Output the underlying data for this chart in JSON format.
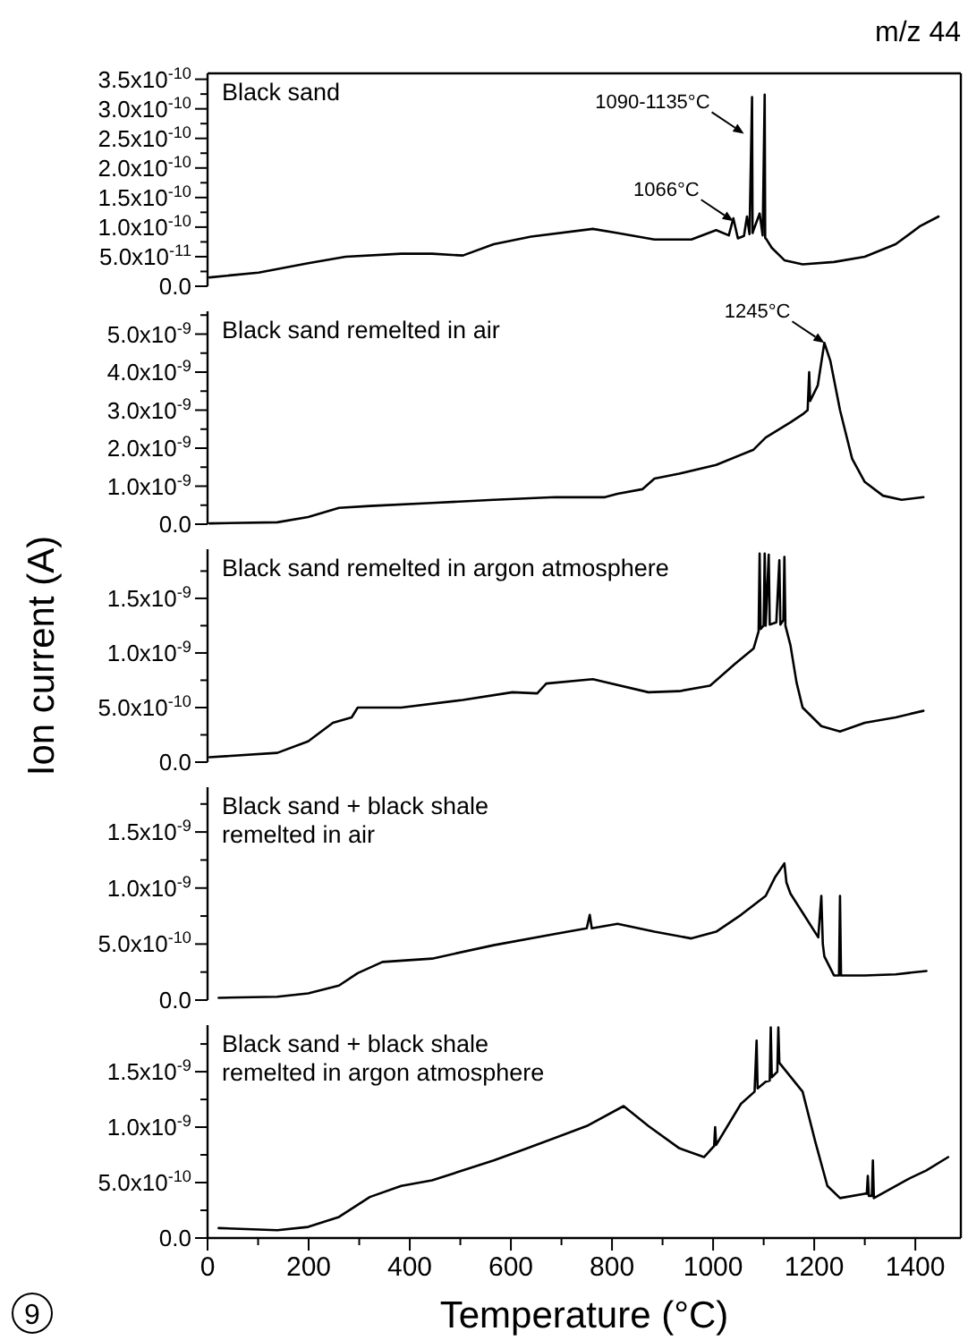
{
  "chart_data": [
    {
      "type": "line",
      "title": "Black sand",
      "color": "#000000",
      "annotations": [
        "m/z 44",
        {
          "text": "1090-1135°C",
          "x": 1061,
          "y": 2.58e-10
        },
        {
          "text": "1066°C",
          "x": 1040,
          "y": 1.1e-10
        }
      ],
      "x": [
        4,
        101,
        199,
        273,
        383,
        444,
        505,
        566,
        640,
        762,
        811,
        884,
        957,
        1006,
        1031,
        1040,
        1049,
        1061,
        1067,
        1072,
        1077,
        1078,
        1080,
        1092,
        1098,
        1102,
        1103,
        1105,
        1116,
        1141,
        1177,
        1239,
        1300,
        1361,
        1410,
        1446
      ],
      "values": [
        1.5e-11,
        2.3e-11,
        3.9e-11,
        5e-11,
        5.5e-11,
        5.5e-11,
        5.2e-11,
        7.1e-11,
        8.4e-11,
        9.7e-11,
        9e-11,
        7.9e-11,
        7.9e-11,
        9.5e-11,
        8.6e-11,
        1.15e-10,
        8.1e-11,
        8.5e-11,
        1.18e-10,
        8.8e-11,
        3.2e-10,
        9e-11,
        9.5e-11,
        1.23e-10,
        8.6e-11,
        3.24e-10,
        8.2e-11,
        8e-11,
        6.5e-11,
        4.4e-11,
        3.7e-11,
        4.1e-11,
        5e-11,
        7.1e-11,
        1.02e-10,
        1.18e-10
      ],
      "xlim": [
        0,
        1490
      ],
      "ylim": [
        0,
        3.6e-10
      ],
      "yticks": [
        {
          "value": 0,
          "label": "0.0"
        },
        {
          "value": 2.5e-11,
          "label": null
        },
        {
          "value": 5e-11,
          "label": "5.0x10$^{-11}$"
        },
        {
          "value": 7.5e-11,
          "label": null
        },
        {
          "value": 1e-10,
          "label": "1.0x10$^{-10}$"
        },
        {
          "value": 1.25e-10,
          "label": null
        },
        {
          "value": 1.5e-10,
          "label": "1.5x10$^{-10}$"
        },
        {
          "value": 1.75e-10,
          "label": null
        },
        {
          "value": 2e-10,
          "label": "2.0x10$^{-10}$"
        },
        {
          "value": 2.25e-10,
          "label": null
        },
        {
          "value": 2.5e-10,
          "label": "2.5x10$^{-10}$"
        },
        {
          "value": 2.75e-10,
          "label": null
        },
        {
          "value": 3e-10,
          "label": "3.0x10$^{-10}$"
        },
        {
          "value": 3.25e-10,
          "label": null
        },
        {
          "value": 3.5e-10,
          "label": "3.5x10$^{-10}$"
        }
      ],
      "tick_labels": "y"
    },
    {
      "type": "line",
      "title": "Black sand remelted in air",
      "color": "#000000",
      "annotations": [
        {
          "text": "1245°C",
          "x": 1220,
          "y": 4.77e-09
        }
      ],
      "x": [
        4,
        138,
        199,
        260,
        321,
        444,
        566,
        688,
        786,
        811,
        860,
        884,
        933,
        1006,
        1080,
        1104,
        1153,
        1177,
        1187,
        1190,
        1192,
        1207,
        1220,
        1232,
        1251,
        1275,
        1300,
        1336,
        1373,
        1416
      ],
      "values": [
        2e-11,
        5e-11,
        1.9e-10,
        4.3e-10,
        4.8e-10,
        5.6e-10,
        6.4e-10,
        7.1e-10,
        7.1e-10,
        8e-10,
        9.2e-10,
        1.2e-09,
        1.33e-09,
        1.56e-09,
        1.96e-09,
        2.28e-09,
        2.68e-09,
        2.89e-09,
        3e-09,
        4e-09,
        3.24e-09,
        3.65e-09,
        4.77e-09,
        4.29e-09,
        3e-09,
        1.72e-09,
        1.11e-09,
        7.5e-10,
        6.4e-10,
        7.1e-10
      ],
      "xlim": [
        0,
        1490
      ],
      "ylim": [
        0,
        5.6e-09
      ],
      "yticks": [
        {
          "value": 0,
          "label": "0.0"
        },
        {
          "value": 5e-10,
          "label": null
        },
        {
          "value": 1e-09,
          "label": "1.0x10$^{-9}$"
        },
        {
          "value": 1.5e-09,
          "label": null
        },
        {
          "value": 2e-09,
          "label": "2.0x10$^{-9}$"
        },
        {
          "value": 2.5e-09,
          "label": null
        },
        {
          "value": 3e-09,
          "label": "3.0x10$^{-9}$"
        },
        {
          "value": 3.5e-09,
          "label": null
        },
        {
          "value": 4e-09,
          "label": "4.0x10$^{-9}$"
        },
        {
          "value": 4.5e-09,
          "label": null
        },
        {
          "value": 5e-09,
          "label": "5.0x10$^{-9}$"
        },
        {
          "value": 5.5e-09,
          "label": null
        }
      ],
      "tick_labels": "y"
    },
    {
      "type": "line",
      "title": "Black sand remelted in argon atmosphere",
      "ylabel": "Ion current (A)",
      "color": "#000000",
      "x": [
        4,
        138,
        199,
        248,
        285,
        297,
        383,
        505,
        603,
        652,
        670,
        762,
        872,
        933,
        994,
        1043,
        1080,
        1090,
        1092,
        1094,
        1100,
        1102,
        1104,
        1110,
        1112,
        1125,
        1131,
        1133,
        1139,
        1141,
        1143,
        1153,
        1165,
        1177,
        1214,
        1251,
        1300,
        1361,
        1416
      ],
      "values": [
        4.5e-11,
        8.5e-11,
        1.9e-10,
        3.6e-10,
        4.1e-10,
        5e-10,
        5e-10,
        5.7e-10,
        6.4e-10,
        6.3e-10,
        7.2e-10,
        7.6e-10,
        6.4e-10,
        6.5e-10,
        7e-10,
        9e-10,
        1.04e-09,
        1.2e-09,
        1.91e-09,
        1.22e-09,
        1.25e-09,
        1.91e-09,
        1.25e-09,
        1.9e-09,
        1.26e-09,
        1.28e-09,
        1.85e-09,
        1.26e-09,
        1.3e-09,
        1.88e-09,
        1.25e-09,
        1.07e-09,
        7.3e-10,
        5e-10,
        3.3e-10,
        2.8e-10,
        3.6e-10,
        4.1e-10,
        4.7e-10
      ],
      "xlim": [
        0,
        1490
      ],
      "ylim": [
        0,
        1.95e-09
      ],
      "yticks": [
        {
          "value": 0,
          "label": "0.0"
        },
        {
          "value": 2.5e-10,
          "label": null
        },
        {
          "value": 5e-10,
          "label": "5.0x10$^{-10}$"
        },
        {
          "value": 7.5e-10,
          "label": null
        },
        {
          "value": 1e-09,
          "label": "1.0x10$^{-9}$"
        },
        {
          "value": 1.25e-09,
          "label": null
        },
        {
          "value": 1.5e-09,
          "label": "1.5x10$^{-9}$"
        },
        {
          "value": 1.75e-09,
          "label": null
        }
      ],
      "tick_labels": "y"
    },
    {
      "type": "line",
      "title": "Black sand + black shale\nremelted in air",
      "color": "#000000",
      "x": [
        22,
        138,
        199,
        260,
        297,
        346,
        444,
        566,
        688,
        750,
        756,
        760,
        811,
        884,
        957,
        1006,
        1055,
        1104,
        1123,
        1141,
        1145,
        1153,
        1177,
        1208,
        1214,
        1217,
        1220,
        1239,
        1249,
        1251,
        1253,
        1300,
        1361,
        1422
      ],
      "values": [
        2e-11,
        3e-11,
        6e-11,
        1.3e-10,
        2.4e-10,
        3.4e-10,
        3.7e-10,
        4.9e-10,
        5.9e-10,
        6.4e-10,
        7.6e-10,
        6.4e-10,
        6.8e-10,
        6.1e-10,
        5.5e-10,
        6.1e-10,
        7.6e-10,
        9.3e-10,
        1.1e-09,
        1.22e-09,
        1.05e-09,
        9.5e-10,
        7.8e-10,
        5.6e-10,
        9.3e-10,
        5e-10,
        3.9e-10,
        2.2e-10,
        2.2e-10,
        9.3e-10,
        2.2e-10,
        2.2e-10,
        2.3e-10,
        2.6e-10
      ],
      "xlim": [
        0,
        1490
      ],
      "ylim": [
        0,
        1.9e-09
      ],
      "yticks": [
        {
          "value": 0,
          "label": "0.0"
        },
        {
          "value": 2.5e-10,
          "label": null
        },
        {
          "value": 5e-10,
          "label": "5.0x10$^{-10}$"
        },
        {
          "value": 7.5e-10,
          "label": null
        },
        {
          "value": 1e-09,
          "label": "1.0x10$^{-9}$"
        },
        {
          "value": 1.25e-09,
          "label": null
        },
        {
          "value": 1.5e-09,
          "label": "1.5x10$^{-9}$"
        },
        {
          "value": 1.75e-09,
          "label": null
        }
      ],
      "tick_labels": "y"
    },
    {
      "type": "line",
      "title": "Black sand + black shale\nremelted in argon atmosphere",
      "xlabel": "Temperature (°C)",
      "color": "#000000",
      "annotations": [
        "9"
      ],
      "x": [
        22,
        138,
        199,
        260,
        321,
        383,
        444,
        566,
        627,
        750,
        823,
        872,
        933,
        982,
        1002,
        1004,
        1006,
        1055,
        1082,
        1086,
        1088,
        1104,
        1112,
        1114,
        1116,
        1127,
        1129,
        1131,
        1177,
        1202,
        1226,
        1251,
        1300,
        1304,
        1306,
        1308,
        1314,
        1316,
        1318,
        1385,
        1422,
        1465
      ],
      "values": [
        9e-11,
        7e-11,
        1e-10,
        1.9e-10,
        3.7e-10,
        4.7e-10,
        5.2e-10,
        7e-10,
        8e-10,
        1.01e-09,
        1.19e-09,
        1.01e-09,
        8.1e-10,
        7.3e-10,
        8.3e-10,
        1e-09,
        8.4e-10,
        1.21e-09,
        1.32e-09,
        1.78e-09,
        1.35e-09,
        1.41e-09,
        1.42e-09,
        1.9e-09,
        1.45e-09,
        1.5e-09,
        1.9e-09,
        1.58e-09,
        1.32e-09,
        8.7e-10,
        4.7e-10,
        3.6e-10,
        4e-10,
        4e-10,
        5.6e-10,
        3.8e-10,
        3.8e-10,
        7e-10,
        3.6e-10,
        5.3e-10,
        6.1e-10,
        7.3e-10
      ],
      "xlim": [
        0,
        1490
      ],
      "xticks": [
        0,
        {
          "value": 100,
          "label": null
        },
        200,
        {
          "value": 300,
          "label": null
        },
        400,
        {
          "value": 500,
          "label": null
        },
        600,
        {
          "value": 700,
          "label": null
        },
        800,
        {
          "value": 900,
          "label": null
        },
        1000,
        {
          "value": 1100,
          "label": null
        },
        1200,
        {
          "value": 1300,
          "label": null
        },
        1400
      ],
      "ylim": [
        0,
        1.92e-09
      ],
      "yticks": [
        {
          "value": 0,
          "label": "0.0"
        },
        {
          "value": 2.5e-10,
          "label": null
        },
        {
          "value": 5e-10,
          "label": "5.0x10$^{-10}$"
        },
        {
          "value": 7.5e-10,
          "label": null
        },
        {
          "value": 1e-09,
          "label": "1.0x10$^{-9}$"
        },
        {
          "value": 1.25e-09,
          "label": null
        },
        {
          "value": 1.5e-09,
          "label": "1.5x10$^{-9}$"
        },
        {
          "value": 1.75e-09,
          "label": null
        }
      ]
    }
  ]
}
